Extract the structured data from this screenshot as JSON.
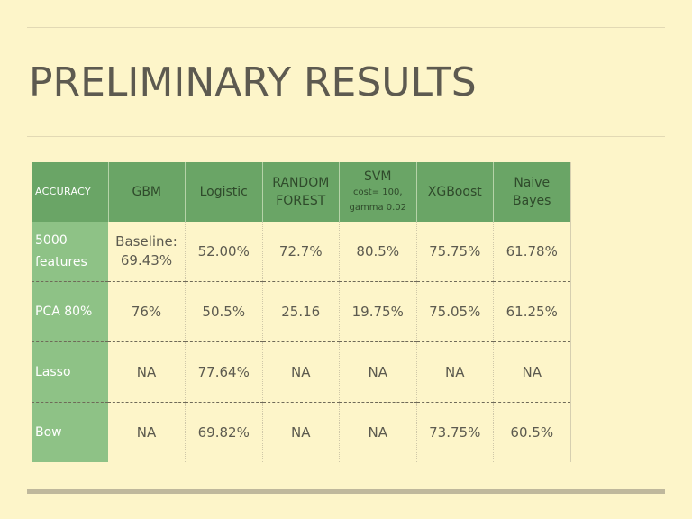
{
  "slide": {
    "title": "PRELIMINARY RESULTS"
  },
  "table": {
    "corner_label": "ACCURACY",
    "columns": [
      {
        "label": "GBM"
      },
      {
        "label": "Logistic"
      },
      {
        "label": "RANDOM FOREST"
      },
      {
        "label": "SVM",
        "sublabel": "cost= 100, gamma 0.02"
      },
      {
        "label": "XGBoost"
      },
      {
        "label": "Naive Bayes"
      }
    ],
    "rows": [
      {
        "label": "5000 features",
        "cells": [
          "Baseline: 69.43%",
          "52.00%",
          "72.7%",
          "80.5%",
          "75.75%",
          "61.78%"
        ]
      },
      {
        "label": "PCA 80%",
        "cells": [
          "76%",
          "50.5%",
          "25.16",
          "19.75%",
          "75.05%",
          "61.25%"
        ]
      },
      {
        "label": "Lasso",
        "cells": [
          "NA",
          "77.64%",
          "NA",
          "NA",
          "NA",
          "NA"
        ]
      },
      {
        "label": "Bow",
        "cells": [
          "NA",
          "69.82%",
          "NA",
          "NA",
          "73.75%",
          "60.5%"
        ]
      }
    ]
  },
  "colors": {
    "background": "#fdf5c9",
    "header_green": "#6aa566",
    "row_header_green": "#8ec286",
    "title_text": "#5d5a50"
  }
}
